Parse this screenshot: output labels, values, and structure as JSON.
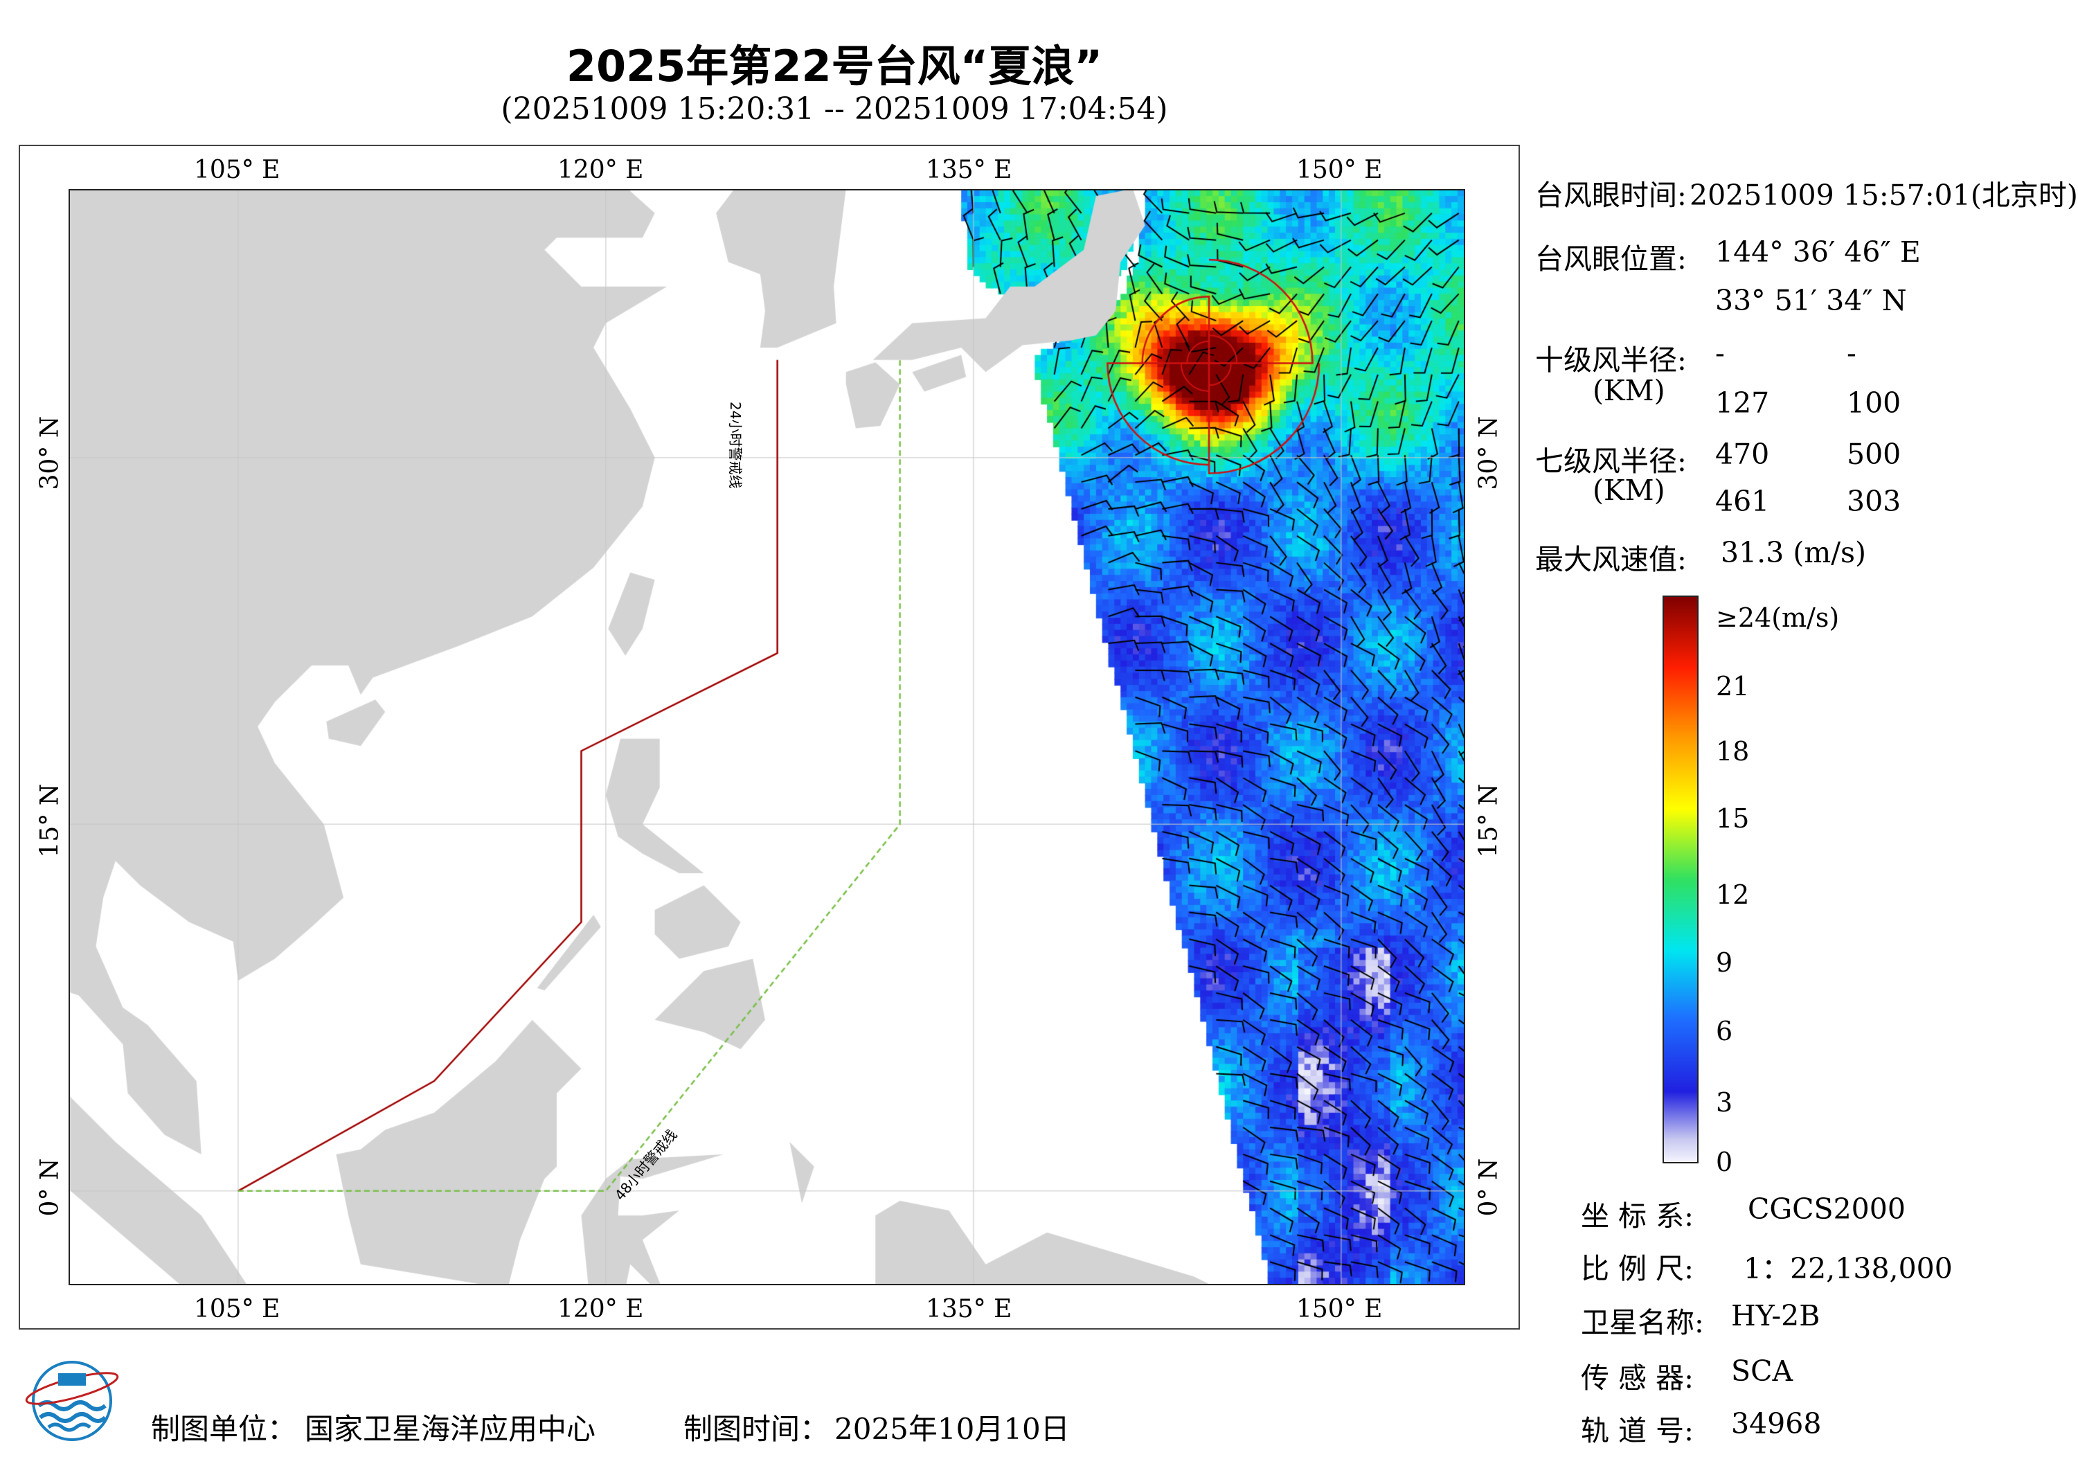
{
  "title": "2025年第22号台风“夏浪”",
  "subtitle": "(20251009 15:20:31 -- 20251009 17:04:54)",
  "map": {
    "lon_ticks": [
      "105° E",
      "120° E",
      "135° E",
      "150° E"
    ],
    "lat_ticks": [
      "30° N",
      "15° N",
      "0° N"
    ],
    "warning_24h": "24小时警戒线",
    "warning_48h": "48小时警戒线",
    "colors": {
      "land": "#d3d3d3",
      "line_24h": "#a00000",
      "line_48h": "#7ac04a",
      "wind_radius": "#d01010"
    }
  },
  "typhoon": {
    "eye_time_label": "台风眼时间:",
    "eye_time": "20251009 15:57:01(北京时)",
    "eye_pos_label": "台风眼位置:",
    "eye_lon": "144° 36′ 46″ E",
    "eye_lat": "33° 51′ 34″ N",
    "r10_label": "十级风半径:",
    "km": "(KM)",
    "r10": [
      "-",
      "-",
      "127",
      "100"
    ],
    "r7_label": "七级风半径:",
    "r7": [
      "470",
      "500",
      "461",
      "303"
    ],
    "max_label": "最大风速值:",
    "max_value": "31.3  (m/s)"
  },
  "colorbar": {
    "labels": [
      "≥24(m/s)",
      "21",
      "18",
      "15",
      "12",
      "9",
      "6",
      "3",
      "0"
    ]
  },
  "meta": [
    {
      "label": "坐 标 系:",
      "value": "CGCS2000"
    },
    {
      "label": "比 例 尺:",
      "value": "1：22,138,000"
    },
    {
      "label": "卫星名称:",
      "value": "HY-2B"
    },
    {
      "label": "传 感 器:",
      "value": "SCA"
    },
    {
      "label": "轨 道 号:",
      "value": "34968"
    }
  ],
  "footer": {
    "unit_label": "制图单位：",
    "unit": "国家卫星海洋应用中心",
    "time_label": "制图时间：",
    "time": "2025年10月10日"
  }
}
